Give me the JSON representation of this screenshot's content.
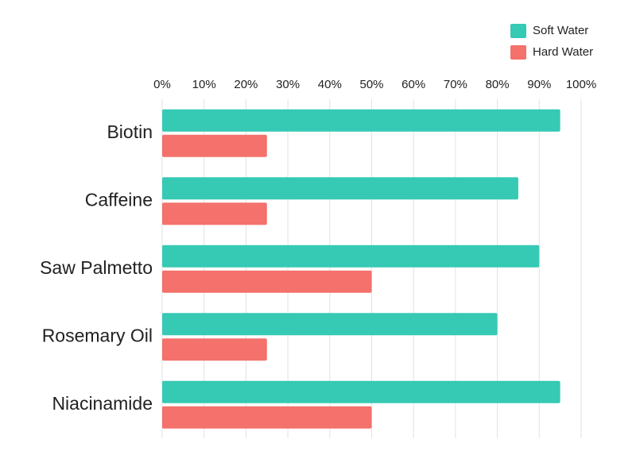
{
  "chart_data": {
    "type": "bar",
    "orientation": "horizontal",
    "grid": true,
    "legend": "top-right",
    "categories": [
      "Biotin",
      "Caffeine",
      "Saw Palmetto",
      "Rosemary Oil",
      "Niacinamide"
    ],
    "series": [
      {
        "name": "Soft Water",
        "color": "#36c9b4",
        "values": [
          95,
          85,
          90,
          80,
          95
        ]
      },
      {
        "name": "Hard Water",
        "color": "#f4716c",
        "values": [
          25,
          25,
          50,
          25,
          50
        ]
      }
    ],
    "xlim": [
      0,
      100
    ],
    "xticks": [
      {
        "value": 0,
        "label": "0%"
      },
      {
        "value": 10,
        "label": "10%"
      },
      {
        "value": 20,
        "label": "20%"
      },
      {
        "value": 30,
        "label": "30%"
      },
      {
        "value": 40,
        "label": "40%"
      },
      {
        "value": 50,
        "label": "50%"
      },
      {
        "value": 60,
        "label": "60%"
      },
      {
        "value": 70,
        "label": "70%"
      },
      {
        "value": 80,
        "label": "80%"
      },
      {
        "value": 90,
        "label": "90%"
      },
      {
        "value": 100,
        "label": "100%"
      }
    ]
  }
}
